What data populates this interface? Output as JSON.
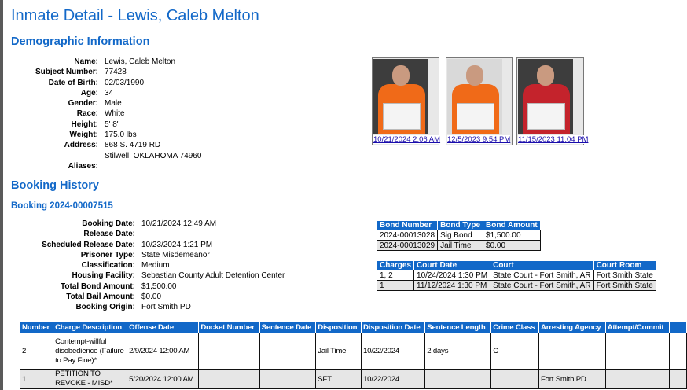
{
  "title": "Inmate Detail - Lewis, Caleb Melton",
  "demographic": {
    "heading": "Demographic Information",
    "fields": [
      {
        "label": "Name:",
        "value": "Lewis, Caleb Melton"
      },
      {
        "label": "Subject Number:",
        "value": "77428"
      },
      {
        "label": "Date of Birth:",
        "value": "02/03/1990"
      },
      {
        "label": "Age:",
        "value": "34"
      },
      {
        "label": "Gender:",
        "value": "Male"
      },
      {
        "label": "Race:",
        "value": "White"
      },
      {
        "label": "Height:",
        "value": "5' 8\""
      },
      {
        "label": "Weight:",
        "value": "175.0 lbs"
      },
      {
        "label": "Address:",
        "value": "868 S. 4719 RD",
        "value2": "Stilwell, OKLAHOMA 74960"
      },
      {
        "label": "Aliases:",
        "value": ""
      }
    ],
    "photos": [
      {
        "caption": "10/21/2024 2:06 AM",
        "shirt": "orange"
      },
      {
        "caption": "12/5/2023 9:54 PM",
        "shirt": "orange"
      },
      {
        "caption": "11/15/2023 11:04 PM",
        "shirt": "red"
      }
    ]
  },
  "booking_history": {
    "heading": "Booking History",
    "booking_title": "Booking 2024-00007515",
    "fields": [
      {
        "label": "Booking Date:",
        "value": "10/21/2024 12:49 AM"
      },
      {
        "label": "Release Date:",
        "value": ""
      },
      {
        "label": "Scheduled Release Date:",
        "value": "10/23/2024 1:21 PM"
      },
      {
        "label": "Prisoner Type:",
        "value": "State Misdemeanor"
      },
      {
        "label": "Classification:",
        "value": "Medium"
      },
      {
        "label": "Housing Facility:",
        "value": "Sebastian County Adult Detention Center"
      },
      {
        "label": "Total Bond Amount:",
        "value": "$1,500.00"
      },
      {
        "label": "Total Bail Amount:",
        "value": "$0.00"
      },
      {
        "label": "Booking Origin:",
        "value": "Fort Smith PD"
      }
    ],
    "bonds": {
      "headers": [
        "Bond Number",
        "Bond Type",
        "Bond Amount"
      ],
      "rows": [
        [
          "2024-00013028",
          "Sig Bond",
          "$1,500.00"
        ],
        [
          "2024-00013029",
          "Jail Time",
          "$0.00"
        ]
      ]
    },
    "courts": {
      "headers": [
        "Charges",
        "Court Date",
        "Court",
        "Court Room"
      ],
      "rows": [
        [
          "1, 2",
          "10/24/2024 1:30 PM",
          "State Court - Fort Smith, AR",
          "Fort Smith State"
        ],
        [
          "1",
          "11/12/2024 1:30 PM",
          "State Court - Fort Smith, AR",
          "Fort Smith State"
        ]
      ]
    },
    "charges": {
      "headers": [
        "Number",
        "Charge Description",
        "Offense Date",
        "Docket Number",
        "Sentence Date",
        "Disposition",
        "Disposition Date",
        "Sentence Length",
        "Crime Class",
        "Arresting Agency",
        "Attempt/Commit",
        ""
      ],
      "rows": [
        [
          "2",
          "Contempt-willful disobedience (Failure to Pay Fine)*",
          "2/9/2024 12:00 AM",
          "",
          "",
          "Jail Time",
          "10/22/2024",
          "2 days",
          "C",
          "",
          "",
          ""
        ],
        [
          "1",
          "PETITION TO REVOKE - MISD*",
          "5/20/2024 12:00 AM",
          "",
          "",
          "SFT",
          "10/22/2024",
          "",
          "",
          "Fort Smith PD",
          "",
          ""
        ]
      ]
    }
  },
  "colors": {
    "accent": "#1268c8",
    "link": "#1a0dab",
    "alt_row": "#e6e6e6"
  }
}
